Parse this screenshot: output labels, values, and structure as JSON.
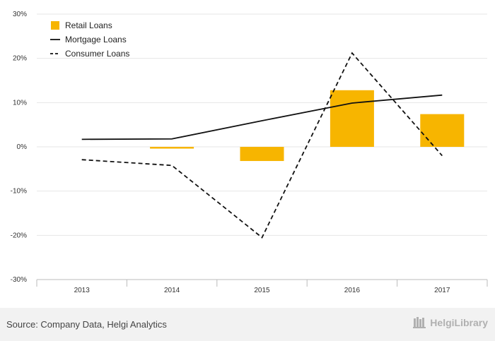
{
  "chart_data": {
    "type": "bar",
    "categories": [
      "2013",
      "2014",
      "2015",
      "2016",
      "2017"
    ],
    "series": [
      {
        "name": "Retail Loans",
        "kind": "bar",
        "color": "#f7b500",
        "values": [
          0,
          -0.4,
          -3.2,
          12.8,
          7.4
        ]
      },
      {
        "name": "Mortgage Loans",
        "kind": "line",
        "style": "solid",
        "color": "#111111",
        "values": [
          1.7,
          1.8,
          5.9,
          9.9,
          11.7
        ]
      },
      {
        "name": "Consumer Loans",
        "kind": "line",
        "style": "dashed",
        "color": "#111111",
        "values": [
          -2.9,
          -4.2,
          -20.5,
          21.2,
          -2.0
        ]
      }
    ],
    "ylim": [
      -30,
      30
    ],
    "yticks": [
      30,
      20,
      10,
      0,
      -10,
      -20,
      -30
    ],
    "ytick_labels": [
      "30%",
      "20%",
      "10%",
      "0%",
      "-10%",
      "-20%",
      "-30%"
    ],
    "grid": true,
    "legend_position": "top-left",
    "title": "",
    "xlabel": "",
    "ylabel": ""
  },
  "footer": {
    "source": "Source: Company Data, Helgi Analytics",
    "brand": "HelgiLibrary",
    "brand_icon": "library-icon"
  }
}
